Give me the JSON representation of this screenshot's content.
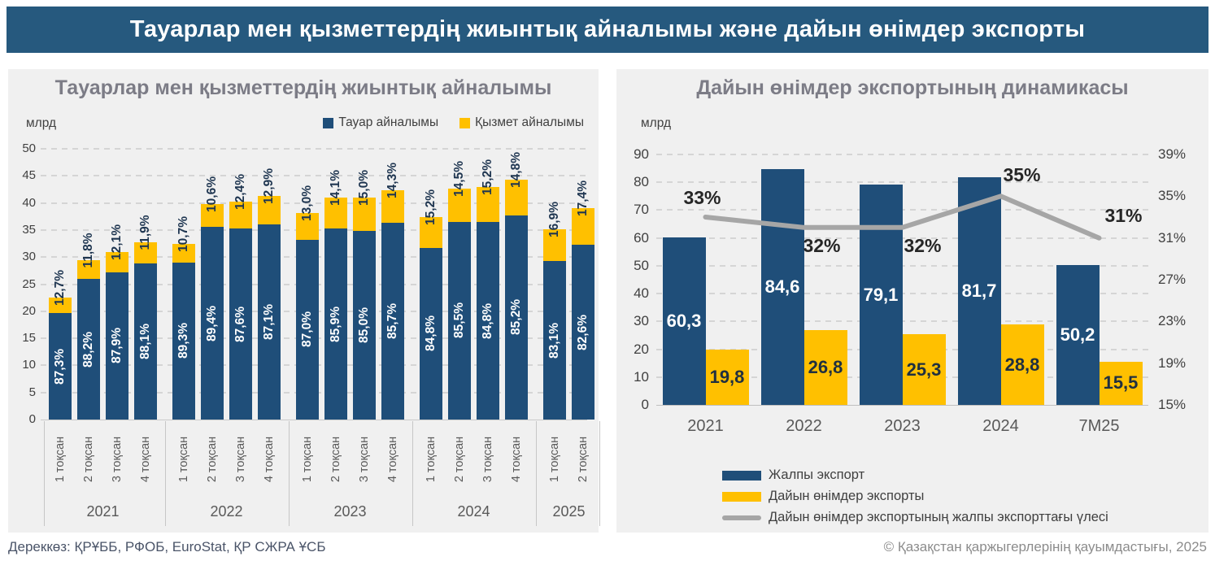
{
  "page_title": "Тауарлар мен қызметтердің жиынтық айналымы және дайын өнімдер экспорты",
  "footer": {
    "source": "Дереккөз: ҚРҰББ, РФОБ, EuroStat, ҚР СЖРА ҰСБ",
    "copyright": "© Қазақстан қаржыгерлерінің қауымдастығы, 2025"
  },
  "colors": {
    "banner": "#26597E",
    "goods_bar": "#1F4E79",
    "services_bar": "#FFC000",
    "share_line": "#A6A6A6",
    "panel_bg": "#F0F0F0",
    "grid": "#D5D5D5",
    "axis_text": "#404040",
    "dark_label": "#1E3550"
  },
  "chart_data": [
    {
      "type": "bar",
      "subtype": "stacked-shares-by-quarter",
      "title": "Тауарлар мен қызметтердің жиынтық айналымы",
      "unit_label": "млрд",
      "legend": [
        "Тауар айналымы",
        "Қызмет айналымы"
      ],
      "legend_position": "top-right",
      "grid": true,
      "ylim": [
        0,
        50
      ],
      "ytick_step": 5,
      "groups": [
        {
          "year": "2021",
          "quarters": [
            "1 тоқсан",
            "2 тоқсан",
            "3 тоқсан",
            "4 тоқсан"
          ],
          "totals": [
            22.5,
            29.4,
            31.0,
            32.8
          ],
          "goods_share_labels": [
            "87,3%",
            "88,2%",
            "87,9%",
            "88,1%"
          ],
          "services_share_labels": [
            "12,7%",
            "11,8%",
            "12,1%",
            "11,9%"
          ]
        },
        {
          "year": "2022",
          "quarters": [
            "1 тоқсан",
            "2 тоқсан",
            "3 тоқсан",
            "4 тоқсан"
          ],
          "totals": [
            32.5,
            39.8,
            40.2,
            41.3
          ],
          "goods_share_labels": [
            "89,3%",
            "89,4%",
            "87,6%",
            "87,1%"
          ],
          "services_share_labels": [
            "10,7%",
            "10,6%",
            "12,4%",
            "12,9%"
          ]
        },
        {
          "year": "2023",
          "quarters": [
            "1 тоқсан",
            "2 тоқсан",
            "3 тоқсан",
            "4 тоқсан"
          ],
          "totals": [
            38.2,
            41.0,
            41.0,
            42.4
          ],
          "goods_share_labels": [
            "87,0%",
            "85,9%",
            "85,0%",
            "85,7%"
          ],
          "services_share_labels": [
            "13,0%",
            "14,1%",
            "15,0%",
            "14,3%"
          ]
        },
        {
          "year": "2024",
          "quarters": [
            "1 тоқсан",
            "2 тоқсан",
            "3 тоқсан",
            "4 тоқсан"
          ],
          "totals": [
            37.4,
            42.7,
            43.0,
            44.3
          ],
          "goods_share_labels": [
            "84,8%",
            "85,5%",
            "84,8%",
            "85,2%"
          ],
          "services_share_labels": [
            "15,2%",
            "14,5%",
            "15,2%",
            "14,8%"
          ]
        },
        {
          "year": "2025",
          "quarters": [
            "1 тоқсан",
            "2 тоқсан"
          ],
          "totals": [
            35.2,
            39.0
          ],
          "goods_share_labels": [
            "83,1%",
            "82,6%"
          ],
          "services_share_labels": [
            "16,9%",
            "17,4%"
          ]
        }
      ]
    },
    {
      "type": "bar+line",
      "title": "Дайын өнімдер экспортының динамикасы",
      "unit_label": "млрд",
      "categories": [
        "2021",
        "2022",
        "2023",
        "2024",
        "7M25"
      ],
      "left_axis": {
        "min": 0,
        "max": 90,
        "step": 10
      },
      "right_axis": {
        "min": 15,
        "max": 39,
        "step": 4,
        "suffix": "%"
      },
      "grid": true,
      "legend_position": "bottom-left",
      "series": [
        {
          "name": "Жалпы экспорт",
          "type": "bar",
          "color": "#1F4E79",
          "values": [
            60.3,
            84.6,
            79.1,
            81.7,
            50.2
          ],
          "labels": [
            "60,3",
            "84,6",
            "79,1",
            "81,7",
            "50,2"
          ]
        },
        {
          "name": "Дайын өнімдер экспорты",
          "type": "bar",
          "color": "#FFC000",
          "values": [
            19.8,
            26.8,
            25.3,
            28.8,
            15.5
          ],
          "labels": [
            "19,8",
            "26,8",
            "25,3",
            "28,8",
            "15,5"
          ]
        },
        {
          "name": "Дайын өнімдер экспортының жалпы экспорттағы үлесі",
          "type": "line",
          "color": "#A6A6A6",
          "values": [
            33,
            32,
            32,
            35,
            31
          ],
          "labels": [
            "33%",
            "32%",
            "32%",
            "35%",
            "31%"
          ]
        }
      ]
    }
  ]
}
